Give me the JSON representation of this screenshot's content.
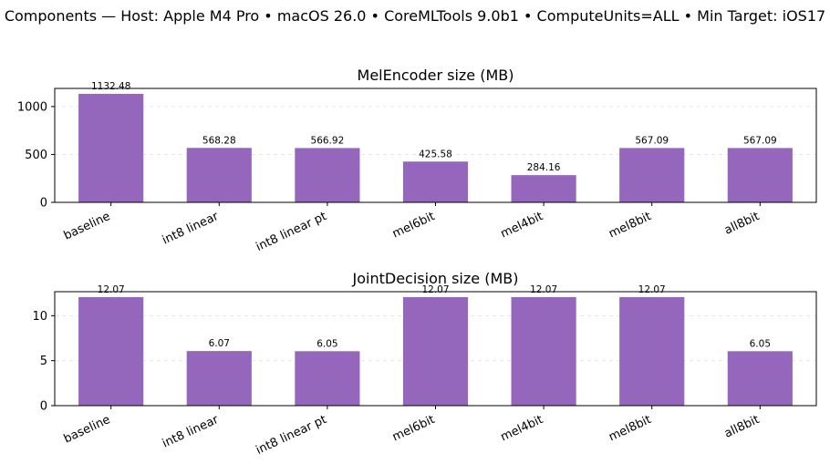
{
  "figure": {
    "suptitle": "Components — Host: Apple M4 Pro • macOS 26.0 • CoreMLTools 9.0b1 • ComputeUnits=ALL • Min Target: iOS17"
  },
  "chart_data": [
    {
      "type": "bar",
      "title": "MelEncoder size (MB)",
      "xlabel": "",
      "ylabel": "",
      "categories": [
        "baseline",
        "int8 linear",
        "int8 linear pt",
        "mel6bit",
        "mel4bit",
        "mel8bit",
        "all8bit"
      ],
      "values": [
        1132.48,
        568.28,
        566.92,
        425.58,
        284.16,
        567.09,
        567.09
      ],
      "value_labels": [
        "1132.48",
        "568.28",
        "566.92",
        "425.58",
        "284.16",
        "567.09",
        "567.09"
      ],
      "ylim": [
        0,
        1189.1
      ],
      "yticks": [
        0,
        500,
        1000
      ],
      "ytick_labels": [
        "0",
        "500",
        "1000"
      ],
      "grid": "y-dashed",
      "bar_color": "#9467bd"
    },
    {
      "type": "bar",
      "title": "JointDecision size (MB)",
      "xlabel": "",
      "ylabel": "",
      "categories": [
        "baseline",
        "int8 linear",
        "int8 linear pt",
        "mel6bit",
        "mel4bit",
        "mel8bit",
        "all8bit"
      ],
      "values": [
        12.07,
        6.07,
        6.05,
        12.07,
        12.07,
        12.07,
        6.05
      ],
      "value_labels": [
        "12.07",
        "6.07",
        "6.05",
        "12.07",
        "12.07",
        "12.07",
        "6.05"
      ],
      "ylim": [
        0,
        12.67
      ],
      "yticks": [
        0,
        5,
        10
      ],
      "ytick_labels": [
        "0",
        "5",
        "10"
      ],
      "grid": "y-dashed",
      "bar_color": "#9467bd"
    }
  ]
}
